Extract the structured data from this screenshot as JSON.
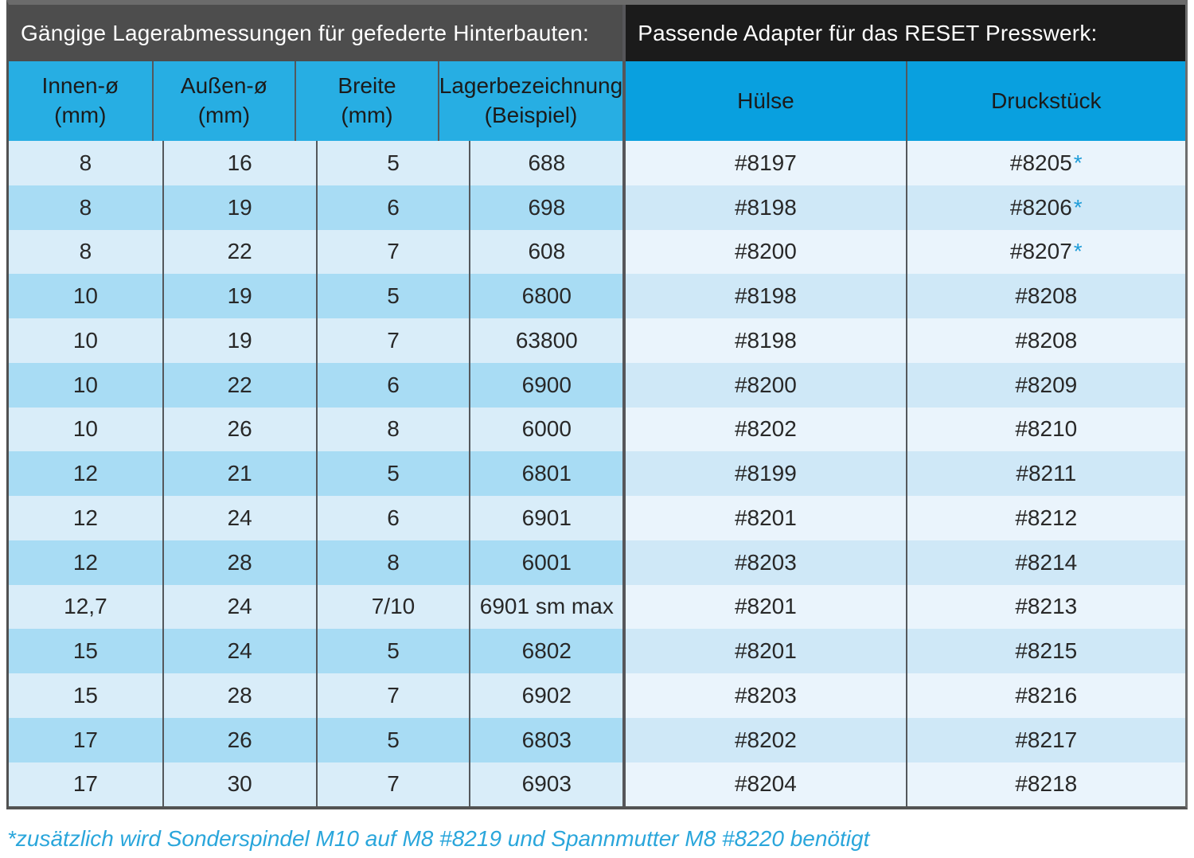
{
  "left_table": {
    "title": "Gängige Lagerabmessungen für gefederte Hinterbauten:",
    "columns": [
      {
        "line1": "Innen-ø",
        "line2": "(mm)"
      },
      {
        "line1": "Außen-ø",
        "line2": "(mm)"
      },
      {
        "line1": "Breite",
        "line2": "(mm)"
      },
      {
        "line1": "Lagerbezeichnung",
        "line2": "(Beispiel)"
      }
    ]
  },
  "right_table": {
    "title": "Passende Adapter für das RESET Presswerk:",
    "columns": [
      {
        "line1": "Hülse"
      },
      {
        "line1": "Druckstück"
      }
    ]
  },
  "note_marker": "*",
  "rows": [
    {
      "innen": "8",
      "aussen": "16",
      "breite": "5",
      "lager": "688",
      "huelse": "#8197",
      "druckstueck": "#8205",
      "druckstueck_note": true
    },
    {
      "innen": "8",
      "aussen": "19",
      "breite": "6",
      "lager": "698",
      "huelse": "#8198",
      "druckstueck": "#8206",
      "druckstueck_note": true
    },
    {
      "innen": "8",
      "aussen": "22",
      "breite": "7",
      "lager": "608",
      "huelse": "#8200",
      "druckstueck": "#8207",
      "druckstueck_note": true
    },
    {
      "innen": "10",
      "aussen": "19",
      "breite": "5",
      "lager": "6800",
      "huelse": "#8198",
      "druckstueck": "#8208",
      "druckstueck_note": false
    },
    {
      "innen": "10",
      "aussen": "19",
      "breite": "7",
      "lager": "63800",
      "huelse": "#8198",
      "druckstueck": "#8208",
      "druckstueck_note": false
    },
    {
      "innen": "10",
      "aussen": "22",
      "breite": "6",
      "lager": "6900",
      "huelse": "#8200",
      "druckstueck": "#8209",
      "druckstueck_note": false
    },
    {
      "innen": "10",
      "aussen": "26",
      "breite": "8",
      "lager": "6000",
      "huelse": "#8202",
      "druckstueck": "#8210",
      "druckstueck_note": false
    },
    {
      "innen": "12",
      "aussen": "21",
      "breite": "5",
      "lager": "6801",
      "huelse": "#8199",
      "druckstueck": "#8211",
      "druckstueck_note": false
    },
    {
      "innen": "12",
      "aussen": "24",
      "breite": "6",
      "lager": "6901",
      "huelse": "#8201",
      "druckstueck": "#8212",
      "druckstueck_note": false
    },
    {
      "innen": "12",
      "aussen": "28",
      "breite": "8",
      "lager": "6001",
      "huelse": "#8203",
      "druckstueck": "#8214",
      "druckstueck_note": false
    },
    {
      "innen": "12,7",
      "aussen": "24",
      "breite": "7/10",
      "lager": "6901 sm max",
      "huelse": "#8201",
      "druckstueck": "#8213",
      "druckstueck_note": false
    },
    {
      "innen": "15",
      "aussen": "24",
      "breite": "5",
      "lager": "6802",
      "huelse": "#8201",
      "druckstueck": "#8215",
      "druckstueck_note": false
    },
    {
      "innen": "15",
      "aussen": "28",
      "breite": "7",
      "lager": "6902",
      "huelse": "#8203",
      "druckstueck": "#8216",
      "druckstueck_note": false
    },
    {
      "innen": "17",
      "aussen": "26",
      "breite": "5",
      "lager": "6803",
      "huelse": "#8202",
      "druckstueck": "#8217",
      "druckstueck_note": false
    },
    {
      "innen": "17",
      "aussen": "30",
      "breite": "7",
      "lager": "6903",
      "huelse": "#8204",
      "druckstueck": "#8218",
      "druckstueck_note": false
    }
  ],
  "footnote": {
    "text": "*zusätzlich wird Sonderspindel M10 auf M8 #8219 und Spannmutter M8 #8220 benötigt"
  },
  "colors": {
    "left_titlebar_bg": "#4d4d4d",
    "right_titlebar_bg": "#1b1b1b",
    "left_header_blue": "#27aee3",
    "right_header_blue": "#09a0df",
    "left_row_light": "#d9edf9",
    "left_row_dark": "#a8dcf4",
    "right_row_light": "#eaf4fc",
    "right_row_dark": "#cfe8f7",
    "accent_cyan": "#1e9cd8",
    "footnote_text": "#2aa6db"
  }
}
